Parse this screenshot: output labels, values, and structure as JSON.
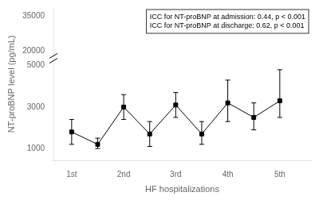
{
  "chart_data": {
    "type": "line",
    "xlabel": "HF hospitalizations",
    "ylabel": "NT-proBNP level (pg/mL)",
    "annotation": [
      "ICC for NT-proBNP at admission: 0.44, p < 0.001",
      "ICC for NT-proBNP at discharge: 0.62, p < 0.001"
    ],
    "x": [
      1,
      1.5,
      2,
      2.5,
      3,
      3.5,
      4,
      4.5,
      5
    ],
    "values": [
      1800,
      1200,
      3000,
      1700,
      3100,
      1700,
      3200,
      2500,
      3300
    ],
    "error_upper": [
      600,
      300,
      600,
      600,
      600,
      600,
      1100,
      700,
      1500
    ],
    "error_lower": [
      600,
      200,
      600,
      600,
      600,
      500,
      900,
      600,
      800
    ],
    "color": "black",
    "marker": "square",
    "xlim": [
      0.65,
      5.6
    ],
    "xticks": [
      {
        "value": 1,
        "label": "1st"
      },
      {
        "value": 2,
        "label": "2nd"
      },
      {
        "value": 3,
        "label": "3rd"
      },
      {
        "value": 4,
        "label": "4th"
      },
      {
        "value": 5,
        "label": "5th"
      }
    ],
    "ylim": [
      400,
      38666.67
    ],
    "yticks": [
      1000,
      3000,
      5000,
      20000,
      35000
    ],
    "grid": false
  }
}
